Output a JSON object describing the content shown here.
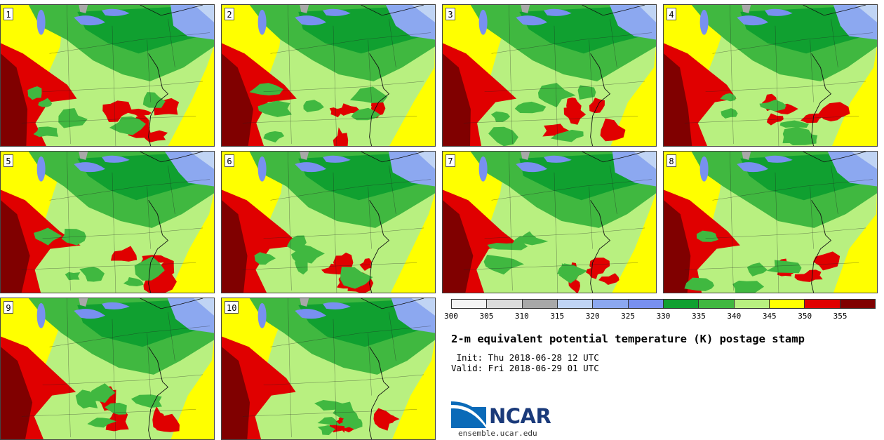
{
  "chart_data": {
    "type": "heatmap",
    "title": "2-m equivalent potential temperature (K) postage stamp",
    "init": " Init: Thu 2018-06-28 12 UTC",
    "valid": "Valid: Fri 2018-06-29 01 UTC",
    "members": [
      {
        "label": "1"
      },
      {
        "label": "2"
      },
      {
        "label": "3"
      },
      {
        "label": "4"
      },
      {
        "label": "5"
      },
      {
        "label": "6"
      },
      {
        "label": "7"
      },
      {
        "label": "8"
      },
      {
        "label": "9"
      },
      {
        "label": "10"
      }
    ],
    "colorbar": {
      "levels": [
        300,
        305,
        310,
        315,
        320,
        325,
        330,
        335,
        340,
        345,
        350,
        355,
        360
      ],
      "tick_labels": [
        "300",
        "305",
        "310",
        "315",
        "320",
        "325",
        "330",
        "335",
        "340",
        "345",
        "350",
        "355"
      ],
      "colors": [
        "#f4f4f4",
        "#dcdcdc",
        "#a8a8a8",
        "#c0d4f4",
        "#8ca8f0",
        "#7890f0",
        "#10a030",
        "#40b840",
        "#b8f080",
        "#ffff00",
        "#e00000",
        "#800000"
      ]
    },
    "units": "K"
  },
  "logo": {
    "name": "NCAR",
    "url": "ensemble.ucar.edu"
  }
}
